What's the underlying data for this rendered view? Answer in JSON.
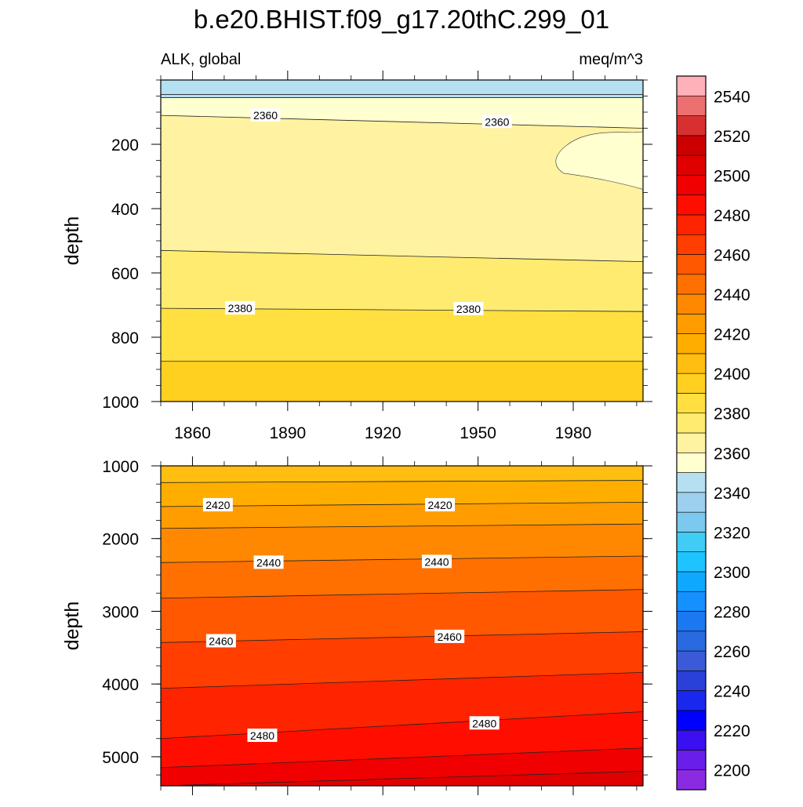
{
  "figure": {
    "title": "b.e20.BHIST.f09_g17.20thC.299_01",
    "left_label": "ALK, global",
    "right_label": "meq/m^3"
  },
  "chart_data": [
    {
      "type": "contour",
      "panel": "upper",
      "xlabel": "",
      "ylabel": "depth",
      "xlim": [
        1850,
        2002
      ],
      "ylim": [
        1000,
        0
      ],
      "x_ticks": [
        1860,
        1890,
        1920,
        1950,
        1980
      ],
      "y_ticks": [
        200,
        400,
        600,
        800,
        1000
      ],
      "contour_lines": [
        {
          "level": 2345,
          "x": [
            1850,
            2002
          ],
          "depth": [
            45,
            45
          ]
        },
        {
          "level": 2350,
          "x": [
            1850,
            2002
          ],
          "depth": [
            55,
            55
          ]
        },
        {
          "level": 2360,
          "x": [
            1850,
            2002
          ],
          "depth": [
            110,
            150
          ]
        },
        {
          "level": 2370,
          "x": [
            1850,
            2002
          ],
          "depth": [
            530,
            565
          ]
        },
        {
          "level": 2380,
          "x": [
            1850,
            2002
          ],
          "depth": [
            710,
            720
          ]
        },
        {
          "level": 2390,
          "x": [
            1850,
            2002
          ],
          "depth": [
            875,
            875
          ]
        }
      ],
      "labels": [
        {
          "text": "2360",
          "x": 1883,
          "depth": 110
        },
        {
          "text": "2360",
          "x": 1956,
          "depth": 130
        },
        {
          "text": "2380",
          "x": 1875,
          "depth": 710
        },
        {
          "text": "2380",
          "x": 1947,
          "depth": 712
        }
      ]
    },
    {
      "type": "contour",
      "panel": "lower",
      "xlabel": "",
      "ylabel": "depth",
      "xlim": [
        1850,
        2002
      ],
      "ylim": [
        5400,
        1000
      ],
      "y_ticks": [
        1000,
        2000,
        3000,
        4000,
        5000
      ],
      "contour_lines": [
        {
          "level": 2410,
          "x": [
            1850,
            2002
          ],
          "depth": [
            1230,
            1200
          ]
        },
        {
          "level": 2420,
          "x": [
            1850,
            2002
          ],
          "depth": [
            1560,
            1500
          ]
        },
        {
          "level": 2430,
          "x": [
            1850,
            2002
          ],
          "depth": [
            1860,
            1800
          ]
        },
        {
          "level": 2440,
          "x": [
            1850,
            2002
          ],
          "depth": [
            2330,
            2240
          ]
        },
        {
          "level": 2450,
          "x": [
            1850,
            2002
          ],
          "depth": [
            2820,
            2700
          ]
        },
        {
          "level": 2460,
          "x": [
            1850,
            2002
          ],
          "depth": [
            3430,
            3280
          ]
        },
        {
          "level": 2470,
          "x": [
            1850,
            2002
          ],
          "depth": [
            4060,
            3840
          ]
        },
        {
          "level": 2480,
          "x": [
            1850,
            2002
          ],
          "depth": [
            4750,
            4380
          ]
        },
        {
          "level": 2490,
          "x": [
            1850,
            2002
          ],
          "depth": [
            5150,
            4880
          ]
        },
        {
          "level": 2500,
          "x": [
            1850,
            2002
          ],
          "depth": [
            5400,
            5200
          ]
        }
      ],
      "labels": [
        {
          "text": "2420",
          "x": 1868,
          "depth": 1540
        },
        {
          "text": "2420",
          "x": 1938,
          "depth": 1540
        },
        {
          "text": "2440",
          "x": 1884,
          "depth": 2330
        },
        {
          "text": "2440",
          "x": 1937,
          "depth": 2320
        },
        {
          "text": "2460",
          "x": 1869,
          "depth": 3410
        },
        {
          "text": "2460",
          "x": 1941,
          "depth": 3350
        },
        {
          "text": "2480",
          "x": 1882,
          "depth": 4710
        },
        {
          "text": "2480",
          "x": 1952,
          "depth": 4540
        }
      ]
    }
  ],
  "colorbar": {
    "orientation": "vertical",
    "levels": [
      2195,
      2200,
      2210,
      2220,
      2230,
      2240,
      2250,
      2260,
      2270,
      2280,
      2290,
      2300,
      2310,
      2320,
      2330,
      2340,
      2350,
      2360,
      2370,
      2380,
      2390,
      2400,
      2410,
      2420,
      2430,
      2440,
      2450,
      2460,
      2470,
      2480,
      2490,
      2500,
      2510,
      2520,
      2530,
      2540,
      2550,
      2560
    ],
    "colors": [
      "#8a2be2",
      "#6a1eea",
      "#3a10f0",
      "#0000ff",
      "#1a28ee",
      "#2a40d8",
      "#3a5ad8",
      "#2a6ae0",
      "#1c78f0",
      "#1490ff",
      "#0fa8ff",
      "#1ec4ff",
      "#40ccf4",
      "#7cc8ee",
      "#9cd0ee",
      "#b4e0f2",
      "#ffffd0",
      "#fff2a0",
      "#ffeb70",
      "#ffe040",
      "#ffd020",
      "#ffbe10",
      "#ffae00",
      "#ff9c00",
      "#ff8800",
      "#ff7000",
      "#ff5800",
      "#ff3e00",
      "#ff2400",
      "#ff0e00",
      "#f00000",
      "#e00000",
      "#cc0000",
      "#d83030",
      "#ec7070",
      "#ffb0b8"
    ],
    "tick_labels": [
      "2200",
      "2220",
      "2240",
      "2260",
      "2280",
      "2300",
      "2320",
      "2340",
      "2360",
      "2380",
      "2400",
      "2420",
      "2440",
      "2460",
      "2480",
      "2500",
      "2520",
      "2540"
    ]
  }
}
